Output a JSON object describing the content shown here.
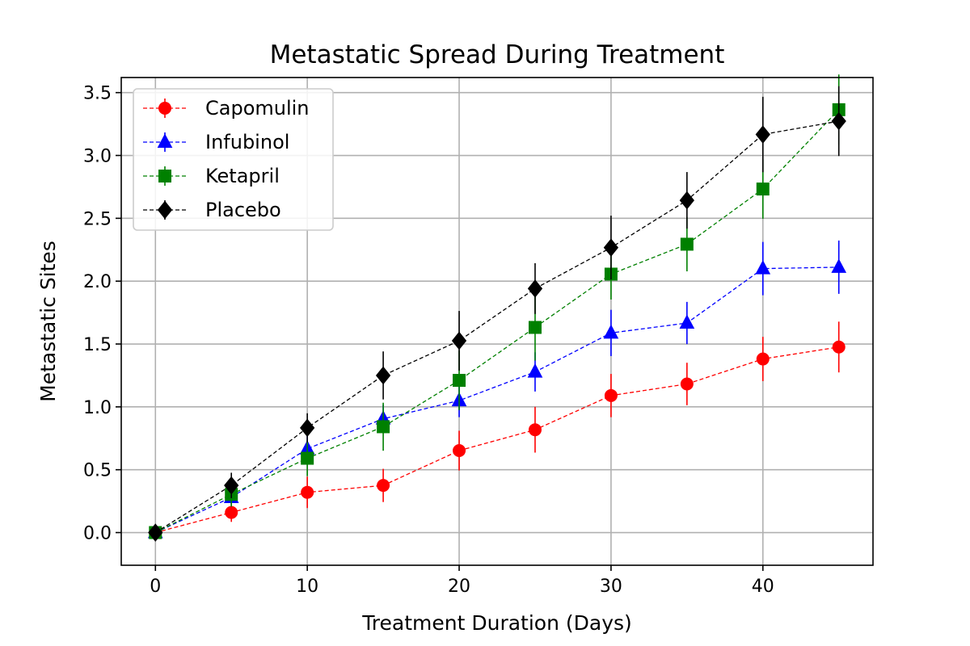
{
  "chart_data": {
    "type": "line",
    "title": "Metastatic Spread During Treatment",
    "xlabel": "Treatment Duration (Days)",
    "ylabel": "Metastatic Sites",
    "xlim": [
      -2.25,
      47.25
    ],
    "ylim": [
      -0.26,
      3.62
    ],
    "xticks": [
      0,
      10,
      20,
      30,
      40
    ],
    "yticks": [
      0.0,
      0.5,
      1.0,
      1.5,
      2.0,
      2.5,
      3.0,
      3.5
    ],
    "ytick_labels": [
      "0.0",
      "0.5",
      "1.0",
      "1.5",
      "2.0",
      "2.5",
      "3.0",
      "3.5"
    ],
    "grid": true,
    "legend_position": "upper-left",
    "x": [
      0,
      5,
      10,
      15,
      20,
      25,
      30,
      35,
      40,
      45
    ],
    "series": [
      {
        "name": "Capomulin",
        "color": "#ff0000",
        "marker": "circle",
        "values": [
          0.0,
          0.16,
          0.32,
          0.375,
          0.652,
          0.818,
          1.09,
          1.182,
          1.381,
          1.476
        ],
        "errors": [
          0.0,
          0.075,
          0.125,
          0.132,
          0.158,
          0.182,
          0.172,
          0.169,
          0.176,
          0.202
        ]
      },
      {
        "name": "Infubinol",
        "color": "#0000ff",
        "marker": "triangle",
        "values": [
          0.0,
          0.28,
          0.667,
          0.905,
          1.05,
          1.278,
          1.588,
          1.667,
          2.1,
          2.111
        ],
        "errors": [
          0.0,
          0.074,
          0.109,
          0.112,
          0.132,
          0.156,
          0.184,
          0.168,
          0.212,
          0.212
        ]
      },
      {
        "name": "Ketapril",
        "color": "#008000",
        "marker": "square",
        "values": [
          0.0,
          0.304,
          0.591,
          0.842,
          1.211,
          1.632,
          2.056,
          2.294,
          2.733,
          3.364
        ],
        "errors": [
          0.0,
          0.098,
          0.142,
          0.191,
          0.237,
          0.264,
          0.202,
          0.216,
          0.236,
          0.28
        ]
      },
      {
        "name": "Placebo",
        "color": "#000000",
        "marker": "diamond",
        "values": [
          0.0,
          0.375,
          0.833,
          1.25,
          1.526,
          1.941,
          2.267,
          2.643,
          3.167,
          3.273
        ],
        "errors": [
          0.0,
          0.101,
          0.116,
          0.191,
          0.237,
          0.202,
          0.254,
          0.225,
          0.3,
          0.278
        ]
      }
    ]
  }
}
